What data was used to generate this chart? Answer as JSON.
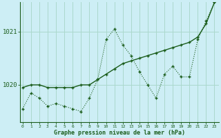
{
  "xlabel": "Graphe pression niveau de la mer (hPa)",
  "background_color": "#cdeef5",
  "grid_color": "#aad8cc",
  "line_color": "#1a5c1a",
  "x_values": [
    0,
    1,
    2,
    3,
    4,
    5,
    6,
    7,
    8,
    9,
    10,
    11,
    12,
    13,
    14,
    15,
    16,
    17,
    18,
    19,
    20,
    21,
    22,
    23
  ],
  "y_series1": [
    1019.55,
    1019.85,
    1019.75,
    1019.6,
    1019.65,
    1019.6,
    1019.55,
    1019.5,
    1019.75,
    1020.1,
    1020.85,
    1021.05,
    1020.75,
    1020.55,
    1020.25,
    1020.0,
    1019.75,
    1020.2,
    1020.35,
    1020.15,
    1020.15,
    1020.85,
    1021.2,
    1021.55
  ],
  "y_series2": [
    1019.95,
    1020.0,
    1020.0,
    1019.95,
    1019.95,
    1019.95,
    1019.95,
    1020.0,
    1020.0,
    1020.1,
    1020.2,
    1020.3,
    1020.4,
    1020.45,
    1020.5,
    1020.55,
    1020.6,
    1020.65,
    1020.7,
    1020.75,
    1020.8,
    1020.9,
    1021.15,
    1021.55
  ],
  "ylim_min": 1019.3,
  "ylim_max": 1021.55,
  "yticks": [
    1020,
    1021
  ],
  "xlim_min": -0.3,
  "xlim_max": 23.5
}
